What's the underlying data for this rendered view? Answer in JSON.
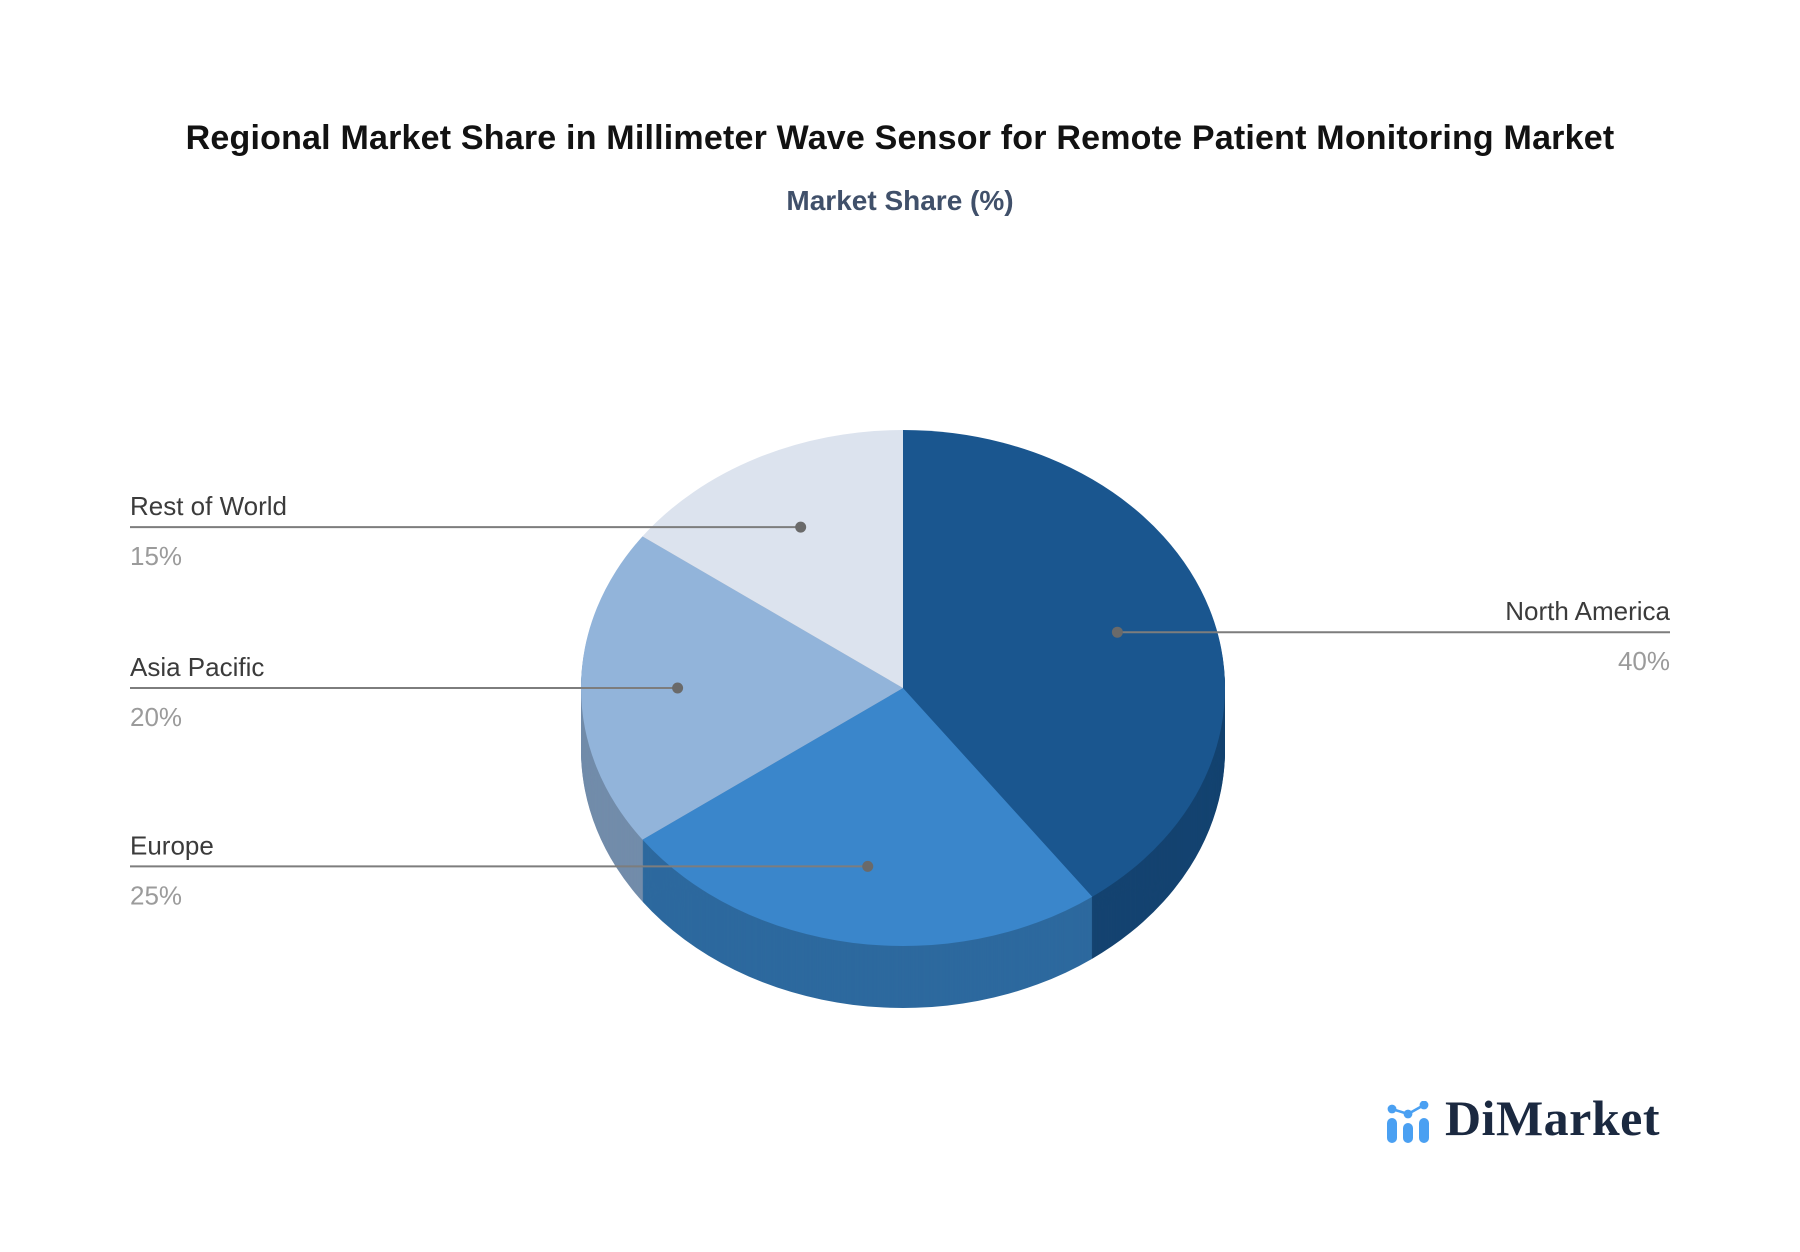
{
  "header": {
    "title": "Regional Market Share in Millimeter Wave Sensor for Remote Patient Monitoring Market",
    "subtitle": "Market Share (%)"
  },
  "chart_data": {
    "type": "pie",
    "style": "3d",
    "title": "Regional Market Share in Millimeter Wave Sensor for Remote Patient Monitoring Market",
    "subtitle": "Market Share (%)",
    "unit": "%",
    "labels": [
      "North America",
      "Europe",
      "Asia Pacific",
      "Rest of World"
    ],
    "values": [
      40,
      25,
      20,
      15
    ],
    "colors": [
      "#1a568f",
      "#3a86cb",
      "#92b4da",
      "#dce3ee"
    ],
    "start_angle": 0,
    "direction": "clockwise",
    "legend_position": "callout-labels",
    "callout_label_color": "#3b3b3b",
    "callout_value_color": "#9b9b9b",
    "leader_line_color": "#7d7d7d",
    "leader_dot_color": "#6a6a6a"
  },
  "branding": {
    "logo_text": "DiMarket",
    "logo_icon": "bar-line-chart-icon",
    "logo_icon_color": "#4aa0f2",
    "logo_text_color": "#1b2940"
  }
}
